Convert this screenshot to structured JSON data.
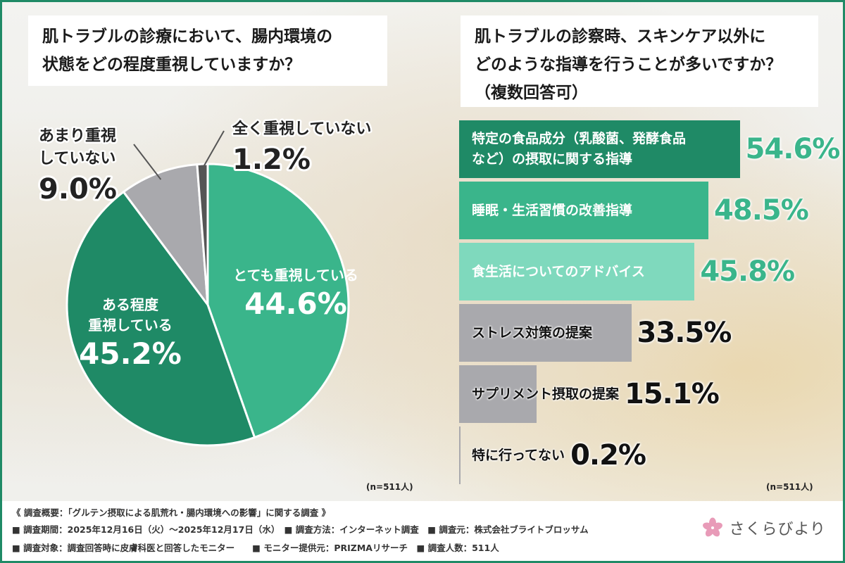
{
  "left_question": {
    "line1": "肌トラブルの診療において、腸内環境の",
    "line2": "状態をどの程度重視していますか？"
  },
  "right_question": {
    "line1": "肌トラブルの診察時、スキンケア以外に",
    "line2": "どのような指導を行うことが多いですか？",
    "line3": "（複数回答可）"
  },
  "chart_data": [
    {
      "type": "pie",
      "slices": [
        {
          "label_lines": [
            "とても重視している"
          ],
          "value": 44.6,
          "value_text": "44.6%",
          "color": "#3ab58b"
        },
        {
          "label_lines": [
            "ある程度",
            "重視している"
          ],
          "value": 45.2,
          "value_text": "45.2%",
          "color": "#1f8a66"
        },
        {
          "label_lines": [
            "あまり重視",
            "していない"
          ],
          "value": 9.0,
          "value_text": "9.0%",
          "color": "#a9a9ad"
        },
        {
          "label_lines": [
            "全く重視していない"
          ],
          "value": 1.2,
          "value_text": "1.2%",
          "color": "#555555"
        }
      ],
      "start": "12 o'clock",
      "direction": "clockwise",
      "note": "(n=511人)"
    },
    {
      "type": "bar",
      "orientation": "horizontal",
      "categories": [
        [
          "特定の食品成分（乳酸菌、発酵食品",
          "など）の摂取に関する指導"
        ],
        [
          "睡眠・生活習慣の改善指導"
        ],
        [
          "食生活についてのアドバイス"
        ],
        [
          "ストレス対策の提案"
        ],
        [
          "サプリメント摂取の提案"
        ],
        [
          "特に行ってない"
        ]
      ],
      "values": [
        54.6,
        48.5,
        45.8,
        33.5,
        15.1,
        0.2
      ],
      "value_texts": [
        "54.6%",
        "48.5%",
        "45.8%",
        "33.5%",
        "15.1%",
        "0.2%"
      ],
      "colors": [
        "#1f8a66",
        "#3ab58b",
        "#7fd9bd",
        "#a9a9ad",
        "#a9a9ad",
        "#a9a9ad"
      ],
      "label_colors": [
        "#ffffff",
        "#ffffff",
        "#ffffff",
        "#111111",
        "#111111",
        "#111111"
      ],
      "value_colors": [
        "#3ab58b",
        "#3ab58b",
        "#3ab58b",
        "#111111",
        "#111111",
        "#111111"
      ],
      "note": "(n=511人)"
    }
  ],
  "footer": {
    "line1": "《 調査概要：「グルテン摂取による肌荒れ・腸内環境への影響」に関する調査 》",
    "line2": "■ 調査期間：2025年12月16日（火）～2025年12月17日（水）　■ 調査方法：インターネット調査　■ 調査元：株式会社ブライトブロッサム",
    "line3": "■ 調査対象：調査回答時に皮膚科医と回答したモニター　　■ モニター提供元：PRIZMAリサーチ　■ 調査人数：511人",
    "brand": "さくらびより",
    "brand_icon": "sakura-flower-icon",
    "brand_color": "#e89bb8"
  }
}
